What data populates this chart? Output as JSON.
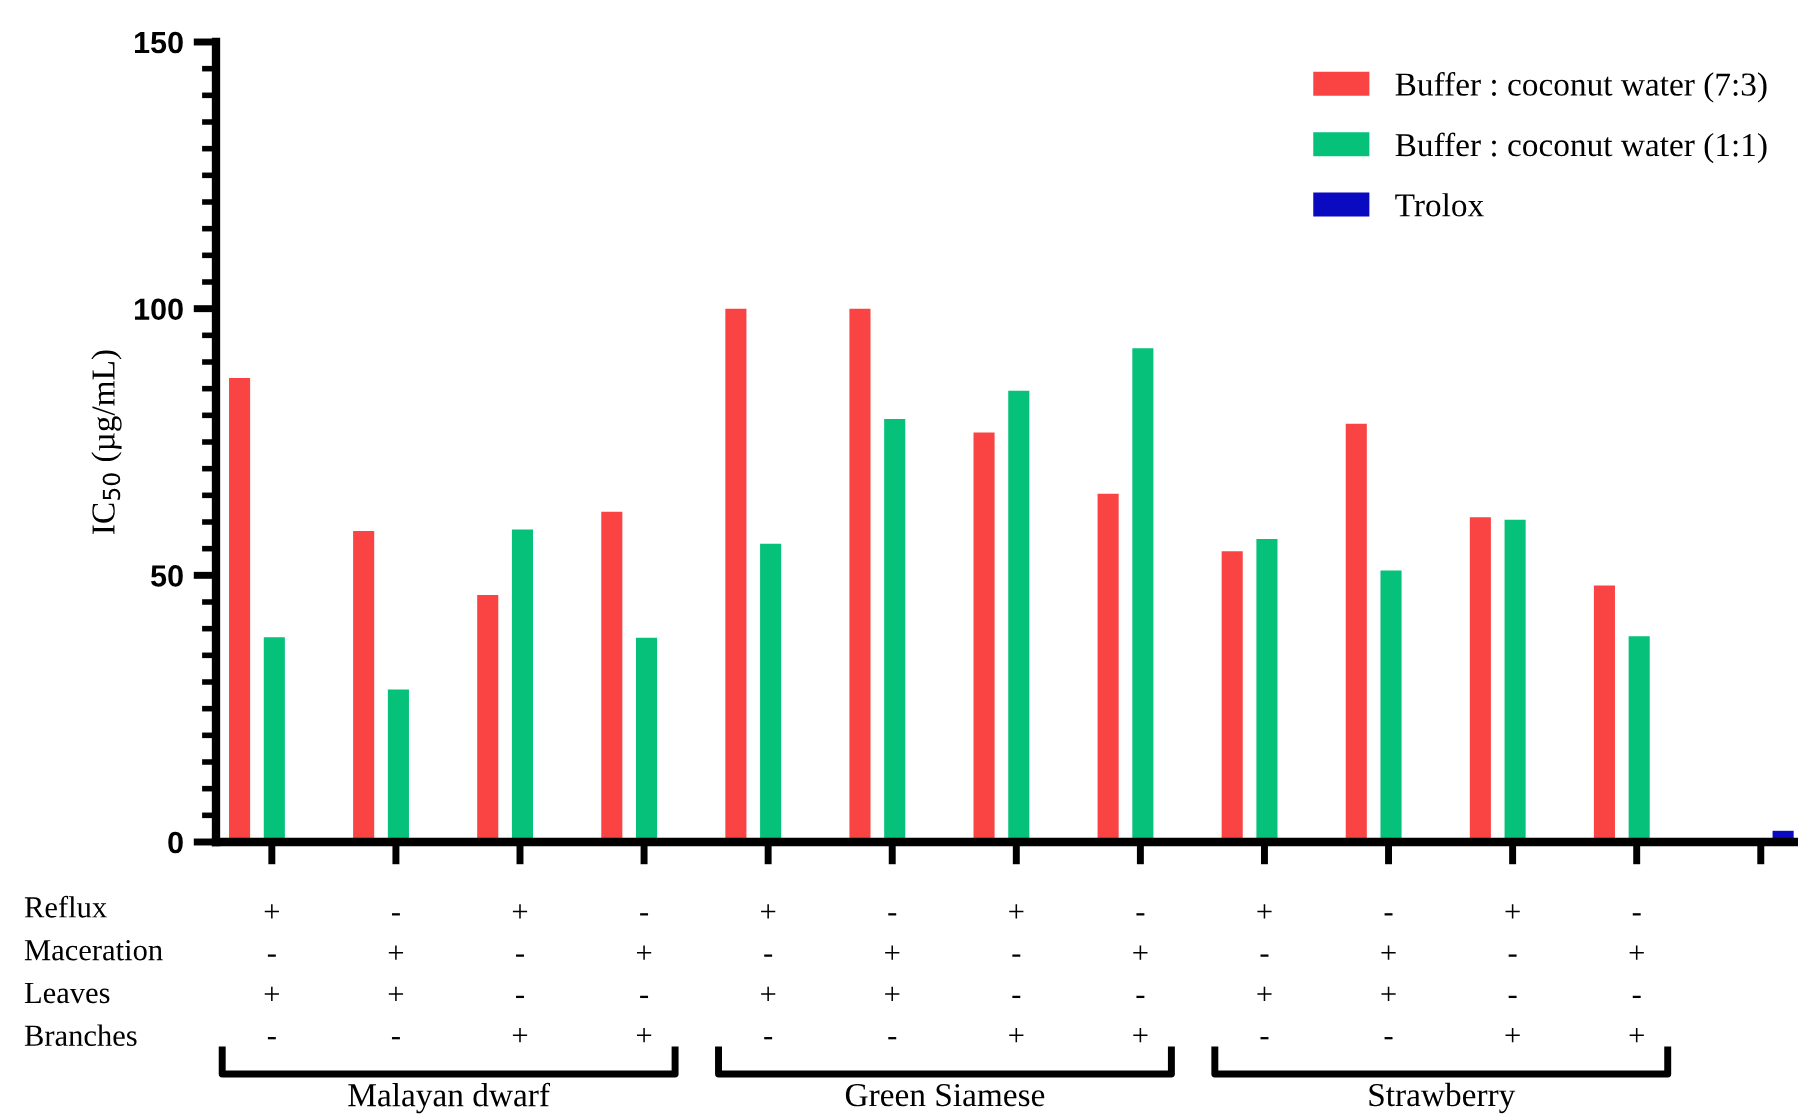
{
  "chart_data": {
    "type": "bar",
    "ylabel": "IC$_{50}$ (µg/mL)",
    "categories": [
      "+\n-\n+\n-",
      "-\n+\n+\n-",
      "+\n-\n-\n+",
      "-\n+\n-\n+",
      "+\n-\n+\n-",
      "-\n+\n+\n-",
      "+\n-\n-\n+",
      "-\n+\n-\n+",
      "+\n-\n+\n-",
      "-\n+\n+\n-",
      "+\n-\n-\n+",
      "-\n+\n-\n+",
      null
    ],
    "series": [
      {
        "name": "Buffer : coconut water (7:3)",
        "color": "#fa4444",
        "values": [
          87,
          58.3,
          46.3,
          61.9,
          100,
          100,
          76.8,
          65.3,
          54.5,
          78.4,
          60.9,
          48.1,
          null
        ]
      },
      {
        "name": "Buffer : coconut water (1:1)",
        "color": "#05c17a",
        "values": [
          38.4,
          28.6,
          58.6,
          38.3,
          55.9,
          79.3,
          84.6,
          92.6,
          56.8,
          50.9,
          60.4,
          38.6,
          null
        ]
      },
      {
        "name": "Trolox",
        "color": "#0a0ac0",
        "values": [
          null,
          null,
          null,
          null,
          null,
          null,
          null,
          null,
          null,
          null,
          null,
          null,
          2.1
        ]
      }
    ],
    "ylim": [
      0,
      150
    ],
    "yticks": [
      0,
      50,
      100,
      150
    ],
    "grid": false,
    "legend": "top right",
    "annotations": [
      "Reflux",
      "Maceration",
      "Leaves",
      "Branches",
      "Malayan dwarf",
      "Green Siamese",
      "Strawberry"
    ]
  }
}
